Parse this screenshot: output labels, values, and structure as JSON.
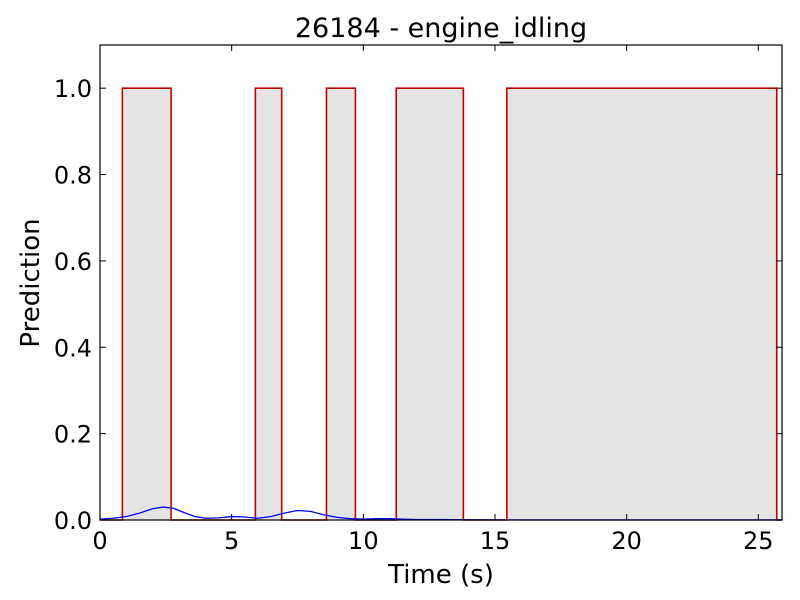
{
  "chart_data": {
    "type": "line",
    "title": "26184 - engine_idling",
    "xlabel": "Time (s)",
    "ylabel": "Prediction",
    "xlim": [
      0,
      25.9
    ],
    "ylim": [
      0,
      1.1
    ],
    "x_ticks": [
      0,
      5,
      10,
      15,
      20,
      25
    ],
    "y_ticks": [
      0.0,
      0.2,
      0.4,
      0.6,
      0.8,
      1.0
    ],
    "x_tick_labels": [
      "0",
      "5",
      "10",
      "15",
      "20",
      "25"
    ],
    "y_tick_labels": [
      "0.0",
      "0.2",
      "0.4",
      "0.6",
      "0.8",
      "1.0"
    ],
    "grid": false,
    "ground_truth_segments": [
      {
        "start": 0.85,
        "end": 2.7
      },
      {
        "start": 5.9,
        "end": 6.9
      },
      {
        "start": 8.6,
        "end": 9.7
      },
      {
        "start": 11.25,
        "end": 13.8
      },
      {
        "start": 15.45,
        "end": 25.7
      }
    ],
    "prediction": {
      "x": [
        0,
        0.5,
        1.0,
        1.5,
        2.0,
        2.4,
        2.8,
        3.2,
        3.6,
        4.0,
        4.5,
        5.0,
        5.5,
        6.0,
        6.5,
        7.0,
        7.5,
        8.0,
        8.5,
        9.0,
        9.5,
        10.0,
        10.5,
        11.0,
        11.5,
        12.0,
        13.0,
        14.0,
        15.0,
        16.0,
        18.0,
        20.0,
        22.0,
        24.0,
        25.9
      ],
      "y": [
        0.002,
        0.004,
        0.008,
        0.016,
        0.026,
        0.03,
        0.027,
        0.017,
        0.008,
        0.004,
        0.005,
        0.008,
        0.007,
        0.004,
        0.008,
        0.016,
        0.022,
        0.02,
        0.012,
        0.006,
        0.003,
        0.002,
        0.003,
        0.003,
        0.002,
        0.001,
        0.001,
        0.0005,
        0.0003,
        0.0002,
        0.0002,
        0.0002,
        0.0002,
        0.0002,
        0.0002
      ]
    },
    "colors": {
      "ground_truth_line": "#c00000",
      "ground_truth_fill": "#e4e4e4",
      "prediction_line": "#0000ff",
      "axes": "#000000"
    }
  }
}
